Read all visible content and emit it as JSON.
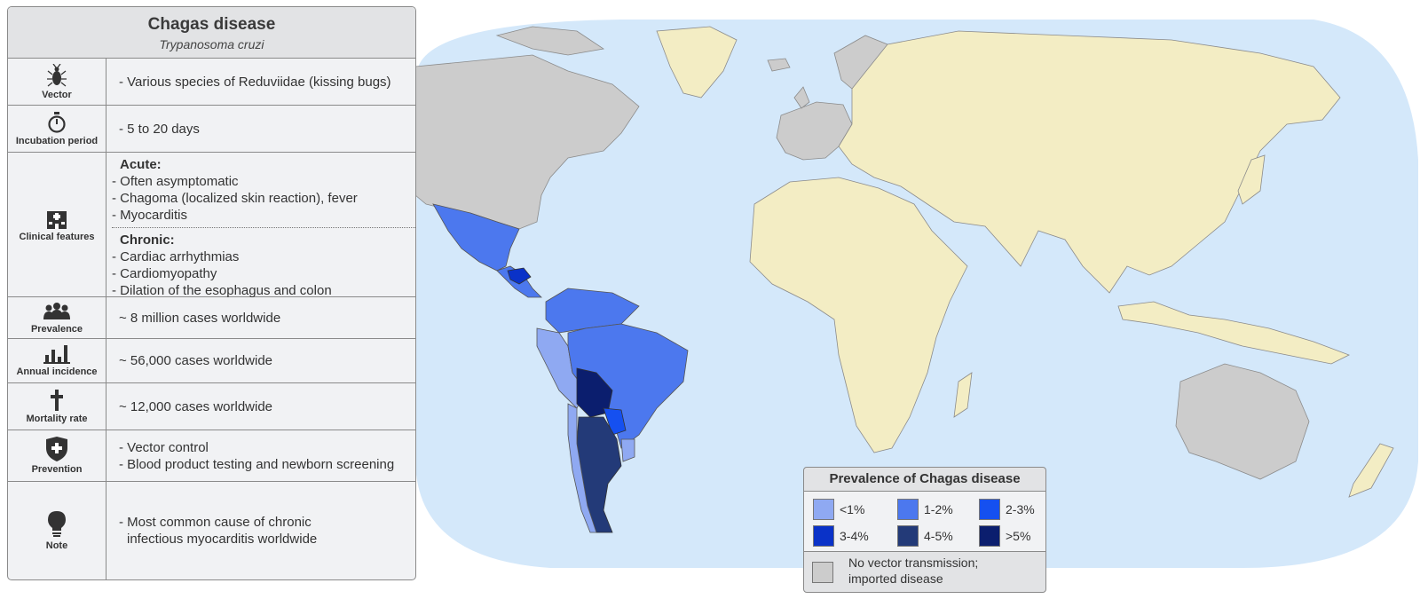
{
  "table": {
    "title": "Chagas disease",
    "subtitle": "Trypanosoma cruzi",
    "rows": {
      "vector": {
        "icon": "bug-icon",
        "label": "Vector",
        "lines": [
          "- Various species of Reduviidae (kissing bugs)"
        ]
      },
      "incubation": {
        "icon": "stopwatch-icon",
        "label": "Incubation period",
        "lines": [
          "- 5 to 20 days"
        ]
      },
      "clinical": {
        "icon": "hospital-icon",
        "label": "Clinical features",
        "acute": {
          "heading": "Acute:",
          "lines": [
            "- Often asymptomatic",
            "- Chagoma (localized skin reaction), fever",
            "- Myocarditis"
          ]
        },
        "chronic": {
          "heading": "Chronic:",
          "lines": [
            "- Cardiac arrhythmias",
            "- Cardiomyopathy",
            "- Dilation of the esophagus and colon"
          ]
        }
      },
      "prevalence": {
        "icon": "people-icon",
        "label": "Prevalence",
        "lines": [
          "~ 8 million cases worldwide"
        ]
      },
      "incidence": {
        "icon": "bar-chart-icon",
        "label": "Annual incidence",
        "lines": [
          "~ 56,000 cases worldwide"
        ]
      },
      "mortality": {
        "icon": "cross-icon",
        "label": "Mortality rate",
        "lines": [
          "~ 12,000 cases worldwide"
        ]
      },
      "prevention": {
        "icon": "shield-cross-icon",
        "label": "Prevention",
        "lines": [
          "- Vector control",
          "- Blood product testing and newborn screening"
        ]
      },
      "note": {
        "icon": "lightbulb-icon",
        "label": "Note",
        "lines": [
          "- Most common cause of chronic",
          "infectious myocarditis worldwide"
        ]
      }
    }
  },
  "legend": {
    "title": "Prevalence of Chagas disease",
    "items": [
      {
        "label": "<1%",
        "color": "#8fa9f2"
      },
      {
        "label": "1-2%",
        "color": "#4c78ee"
      },
      {
        "label": "2-3%",
        "color": "#1550f0"
      },
      {
        "label": "3-4%",
        "color": "#0a32c8"
      },
      {
        "label": "4-5%",
        "color": "#233a78"
      },
      {
        "label": ">5%",
        "color": "#0b1e6e"
      }
    ],
    "no_transmission": {
      "lines": [
        "No vector transmission;",
        "imported disease"
      ],
      "color": "#cccccc"
    }
  },
  "map": {
    "ocean_color": "#d4e8fa",
    "endemic_land_color": "#f3edc4",
    "imported_color": "#cccccc",
    "regions": [
      {
        "name": "mexico",
        "prevalence": "1-2%"
      },
      {
        "name": "central-america",
        "prevalence": "1-2%"
      },
      {
        "name": "honduras",
        "prevalence": "3-4%"
      },
      {
        "name": "colombia-venezuela-guianas",
        "prevalence": "1-2%"
      },
      {
        "name": "ecuador-peru",
        "prevalence": "<1%"
      },
      {
        "name": "brazil",
        "prevalence": "1-2%"
      },
      {
        "name": "bolivia",
        "prevalence": ">5%"
      },
      {
        "name": "paraguay",
        "prevalence": "2-3%"
      },
      {
        "name": "argentina",
        "prevalence": "4-5%"
      },
      {
        "name": "chile",
        "prevalence": "<1%"
      },
      {
        "name": "uruguay",
        "prevalence": "<1%"
      }
    ]
  }
}
